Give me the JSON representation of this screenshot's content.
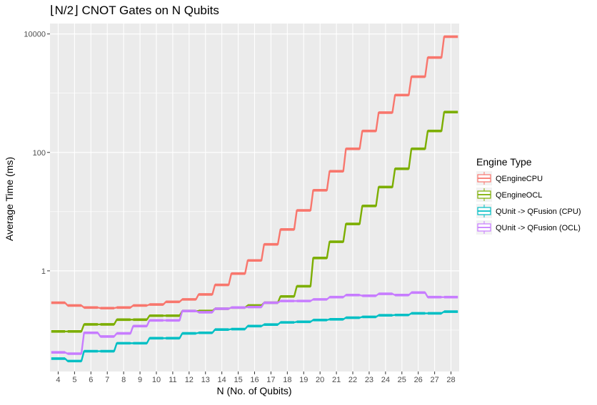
{
  "chart_data": {
    "type": "line",
    "title": "⌊N/2⌋ CNOT Gates on N Qubits",
    "xlabel": "N (No. of Qubits)",
    "ylabel": "Average Time (ms)",
    "y_scale": "log10",
    "ylim": [
      0.02,
      15000
    ],
    "xlim": [
      3.5,
      28.5
    ],
    "x": [
      4,
      5,
      6,
      7,
      8,
      9,
      10,
      11,
      12,
      13,
      14,
      15,
      16,
      17,
      18,
      19,
      20,
      21,
      22,
      23,
      24,
      25,
      26,
      27,
      28
    ],
    "x_ticks": [
      "4",
      "5",
      "6",
      "7",
      "8",
      "9",
      "10",
      "11",
      "12",
      "13",
      "14",
      "15",
      "16",
      "17",
      "18",
      "19",
      "20",
      "21",
      "22",
      "23",
      "24",
      "25",
      "26",
      "27",
      "28"
    ],
    "y_ticks": [
      {
        "value": 1,
        "label": "1"
      },
      {
        "value": 100,
        "label": "100"
      },
      {
        "value": 10000,
        "label": "10000"
      }
    ],
    "y_minor_gridlines": [
      0.1,
      10,
      1000
    ],
    "legend_title": "Engine Type",
    "legend_position": "right",
    "grid": true,
    "background": "#ebebeb",
    "series": [
      {
        "name": "QEngineCPU",
        "color": "#f8766d",
        "values": [
          0.29,
          0.26,
          0.24,
          0.235,
          0.24,
          0.26,
          0.27,
          0.3,
          0.33,
          0.4,
          0.58,
          0.9,
          1.5,
          2.8,
          5.0,
          10.5,
          23,
          48,
          115,
          230,
          470,
          930,
          1900,
          4000,
          9000
        ]
      },
      {
        "name": "QEngineOCL",
        "color": "#7cae00",
        "values": [
          0.095,
          0.095,
          0.125,
          0.125,
          0.15,
          0.15,
          0.175,
          0.175,
          0.21,
          0.21,
          0.23,
          0.24,
          0.26,
          0.29,
          0.37,
          0.55,
          1.65,
          3.1,
          6.2,
          12.5,
          26,
          53,
          115,
          230,
          480
        ]
      },
      {
        "name": "QUnit -> QFusion (CPU)",
        "color": "#00bfc4",
        "values": [
          0.033,
          0.03,
          0.044,
          0.044,
          0.06,
          0.06,
          0.073,
          0.073,
          0.088,
          0.09,
          0.102,
          0.104,
          0.117,
          0.124,
          0.135,
          0.138,
          0.148,
          0.152,
          0.162,
          0.167,
          0.178,
          0.18,
          0.192,
          0.192,
          0.205
        ]
      },
      {
        "name": "QUnit -> QFusion (OCL)",
        "color": "#c77cff",
        "values": [
          0.042,
          0.04,
          0.09,
          0.078,
          0.088,
          0.117,
          0.146,
          0.146,
          0.21,
          0.2,
          0.23,
          0.24,
          0.245,
          0.29,
          0.31,
          0.31,
          0.33,
          0.36,
          0.39,
          0.38,
          0.41,
          0.39,
          0.43,
          0.36,
          0.36
        ]
      }
    ]
  }
}
